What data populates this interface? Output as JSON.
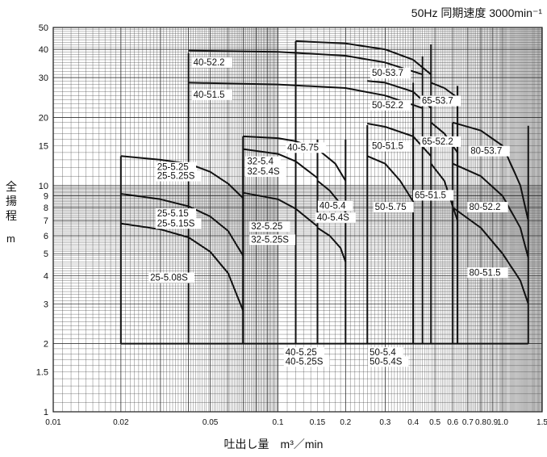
{
  "chart_data": {
    "type": "line",
    "title": "50Hz 同期速度 3000min⁻¹",
    "xlabel": "吐出し量　m³／min",
    "ylabel": "全揚程",
    "ylabel_unit": "m",
    "x_scale": "log",
    "y_scale": "log",
    "xlim": [
      0.01,
      1.5
    ],
    "ylim": [
      1,
      50
    ],
    "x_ticks": [
      "0.01",
      "0.02",
      "0.05",
      "0.1",
      "0.15",
      "0.2",
      "0.3",
      "0.4",
      "0.5",
      "0.6",
      "0.7",
      "0.8",
      "0.9",
      "1.0",
      "1.5"
    ],
    "y_ticks": [
      "1",
      "1.5",
      "2",
      "3",
      "4",
      "5",
      "6",
      "7",
      "8",
      "9",
      "10",
      "15",
      "20",
      "30",
      "40",
      "50"
    ],
    "grid": true,
    "min_head_line": 2,
    "regions": [
      {
        "name": "25-5.25 / 25-5.25S / 25-5.15 / 25-5.15S / 25-5.08S",
        "x_range": [
          0.02,
          0.07
        ],
        "top": 13.5
      },
      {
        "name": "40-52.2 / 40-51.5",
        "x_range": [
          0.04,
          0.44
        ],
        "top": 38.5
      },
      {
        "name": "32-5.4 / 32-5.4S / 32-5.25 / 32-5.25S",
        "x_range": [
          0.07,
          0.15
        ],
        "top": 16.5
      },
      {
        "name": "40-5.75 / 40-5.4 / 40-5.4S / 40-5.25 / 40-5.25S",
        "x_range": [
          0.07,
          0.2
        ],
        "top": 16.5
      },
      {
        "name": "50-5.75 / 50-5.4 / 50-5.4S",
        "x_range": [
          0.25,
          0.4
        ],
        "top": 18.5
      },
      {
        "name": "50-53.7 / 50-52.2 / 50-51.5",
        "x_range": [
          0.12,
          0.48
        ],
        "top": 43.5
      },
      {
        "name": "65-53.7 / 65-52.2 / 65-51.5",
        "x_range": [
          0.4,
          0.63
        ],
        "top": 28.5
      },
      {
        "name": "80-53.7 / 80-52.2 / 80-51.5",
        "x_range": [
          0.6,
          1.3
        ],
        "top": 19.0
      }
    ],
    "series": [
      {
        "name": "40-52.2",
        "x": [
          0.04,
          0.1,
          0.2,
          0.3,
          0.44
        ],
        "y": [
          39.5,
          39.0,
          37.5,
          35.0,
          31.0
        ]
      },
      {
        "name": "40-51.5",
        "x": [
          0.04,
          0.1,
          0.2,
          0.3,
          0.44
        ],
        "y": [
          28.5,
          28.0,
          27.0,
          25.0,
          22.0
        ]
      },
      {
        "name": "25-5.25",
        "x": [
          0.02,
          0.03,
          0.04,
          0.05,
          0.06,
          0.07
        ],
        "y": [
          13.5,
          13.0,
          12.5,
          11.5,
          10.2,
          8.8
        ]
      },
      {
        "name": "25-5.15",
        "x": [
          0.02,
          0.03,
          0.04,
          0.05,
          0.06,
          0.07
        ],
        "y": [
          9.2,
          8.7,
          8.1,
          7.3,
          6.3,
          4.9
        ]
      },
      {
        "name": "25-5.08S",
        "x": [
          0.02,
          0.03,
          0.04,
          0.05,
          0.06,
          0.07
        ],
        "y": [
          6.8,
          6.4,
          5.9,
          5.1,
          4.1,
          2.8
        ]
      },
      {
        "name": "40-5.75",
        "x": [
          0.07,
          0.1,
          0.12,
          0.15,
          0.18,
          0.2
        ],
        "y": [
          16.5,
          16.2,
          15.7,
          14.5,
          12.5,
          10.5
        ]
      },
      {
        "name": "32-5.4",
        "x": [
          0.07,
          0.1,
          0.12,
          0.15
        ],
        "y": [
          14.5,
          13.8,
          12.8,
          10.8
        ]
      },
      {
        "name": "32-5.25",
        "x": [
          0.07,
          0.1,
          0.12,
          0.15
        ],
        "y": [
          9.3,
          8.7,
          7.9,
          6.6
        ]
      },
      {
        "name": "40-5.4",
        "x": [
          0.15,
          0.17,
          0.19,
          0.2
        ],
        "y": [
          10.5,
          9.5,
          8.3,
          7.6
        ]
      },
      {
        "name": "40-5.25",
        "x": [
          0.15,
          0.17,
          0.19,
          0.2
        ],
        "y": [
          6.5,
          6.0,
          5.3,
          4.6
        ]
      },
      {
        "name": "50-53.7",
        "x": [
          0.12,
          0.2,
          0.3,
          0.4,
          0.48
        ],
        "y": [
          43.5,
          42.5,
          40.0,
          36.0,
          31.0
        ]
      },
      {
        "name": "50-52.2",
        "x": [
          0.25,
          0.3,
          0.4,
          0.48
        ],
        "y": [
          29.0,
          28.5,
          26.0,
          22.0
        ]
      },
      {
        "name": "50-51.5",
        "x": [
          0.25,
          0.3,
          0.4,
          0.48
        ],
        "y": [
          18.8,
          18.2,
          16.5,
          13.5
        ]
      },
      {
        "name": "50-5.75",
        "x": [
          0.25,
          0.3,
          0.35,
          0.4
        ],
        "y": [
          13.5,
          12.5,
          10.5,
          8.5
        ]
      },
      {
        "name": "65-53.7",
        "x": [
          0.48,
          0.55,
          0.63
        ],
        "y": [
          28.5,
          27.0,
          24.5
        ]
      },
      {
        "name": "65-52.2",
        "x": [
          0.48,
          0.55,
          0.63
        ],
        "y": [
          19.0,
          17.0,
          14.0
        ]
      },
      {
        "name": "65-51.5",
        "x": [
          0.48,
          0.55,
          0.63
        ],
        "y": [
          12.5,
          10.5,
          7.0
        ]
      },
      {
        "name": "80-53.7",
        "x": [
          0.6,
          0.8,
          1.0,
          1.2,
          1.3
        ],
        "y": [
          19.0,
          17.5,
          15.0,
          10.0,
          7.0
        ]
      },
      {
        "name": "80-52.2",
        "x": [
          0.6,
          0.8,
          1.0,
          1.2,
          1.3
        ],
        "y": [
          12.5,
          11.0,
          9.0,
          6.5,
          4.8
        ]
      },
      {
        "name": "80-51.5",
        "x": [
          0.6,
          0.8,
          1.0,
          1.2,
          1.3
        ],
        "y": [
          8.0,
          6.5,
          5.0,
          3.8,
          3.0
        ]
      }
    ],
    "labels": [
      {
        "text": "40-52.2",
        "x": 0.042,
        "y": 34.0
      },
      {
        "text": "40-51.5",
        "x": 0.042,
        "y": 24.5
      },
      {
        "text": "25-5.25",
        "x": 0.029,
        "y": 11.7
      },
      {
        "text": "25-5.25S",
        "x": 0.029,
        "y": 10.7
      },
      {
        "text": "25-5.15",
        "x": 0.029,
        "y": 7.3
      },
      {
        "text": "25-5.15S",
        "x": 0.029,
        "y": 6.6
      },
      {
        "text": "25-5.08S",
        "x": 0.027,
        "y": 3.8
      },
      {
        "text": "32-5.4",
        "x": 0.073,
        "y": 12.4
      },
      {
        "text": "32-5.4S",
        "x": 0.073,
        "y": 11.2
      },
      {
        "text": "32-5.25",
        "x": 0.076,
        "y": 6.4
      },
      {
        "text": "32-5.25S",
        "x": 0.076,
        "y": 5.6
      },
      {
        "text": "40-5.75",
        "x": 0.11,
        "y": 14.3
      },
      {
        "text": "40-5.4",
        "x": 0.153,
        "y": 7.9
      },
      {
        "text": "40-5.4S",
        "x": 0.149,
        "y": 7.0
      },
      {
        "text": "40-5.25",
        "x": 0.108,
        "y": 1.78
      },
      {
        "text": "40-5.25S",
        "x": 0.108,
        "y": 1.62
      },
      {
        "text": "50-53.7",
        "x": 0.262,
        "y": 30.5
      },
      {
        "text": "50-52.2",
        "x": 0.262,
        "y": 22.0
      },
      {
        "text": "50-51.5",
        "x": 0.262,
        "y": 14.5
      },
      {
        "text": "50-5.75",
        "x": 0.27,
        "y": 7.8
      },
      {
        "text": "50-5.4",
        "x": 0.256,
        "y": 1.78
      },
      {
        "text": "50-5.4S",
        "x": 0.256,
        "y": 1.62
      },
      {
        "text": "65-53.7",
        "x": 0.437,
        "y": 23.0
      },
      {
        "text": "65-52.2",
        "x": 0.437,
        "y": 15.2
      },
      {
        "text": "65-51.5",
        "x": 0.406,
        "y": 8.8
      },
      {
        "text": "80-53.7",
        "x": 0.72,
        "y": 13.8
      },
      {
        "text": "80-52.2",
        "x": 0.71,
        "y": 7.8
      },
      {
        "text": "80-51.5",
        "x": 0.71,
        "y": 4.0
      }
    ]
  }
}
